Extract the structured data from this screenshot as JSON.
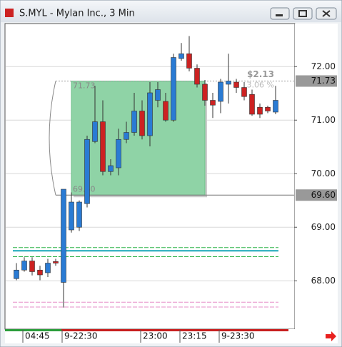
{
  "window": {
    "title": "S.MYL - Mylan Inc., 3 Min"
  },
  "chart_data": {
    "type": "candlestick",
    "categories": [
      null,
      "04:45",
      null,
      null,
      null,
      null,
      "9-22:30",
      null,
      null,
      null,
      null,
      null,
      null,
      null,
      null,
      null,
      "23:00",
      null,
      null,
      null,
      null,
      "23:15",
      null,
      null,
      null,
      null,
      "9-23:30",
      null,
      null,
      null,
      null,
      null,
      null,
      null
    ],
    "open": [
      68.04,
      68.2,
      68.37,
      68.2,
      68.15,
      68.36,
      67.97,
      68.95,
      69.0,
      69.44,
      70.6,
      70.97,
      70.04,
      70.11,
      70.64,
      70.77,
      71.17,
      70.71,
      71.37,
      71.35,
      71.0,
      72.15,
      72.24,
      71.97,
      71.67,
      71.37,
      71.35,
      71.67,
      71.71,
      71.61,
      71.48,
      71.24,
      71.24,
      71.15
    ],
    "high": [
      68.33,
      68.44,
      68.44,
      68.28,
      68.41,
      68.41,
      69.71,
      69.65,
      69.5,
      70.71,
      71.64,
      71.37,
      70.27,
      70.84,
      70.97,
      71.51,
      71.37,
      71.71,
      71.71,
      71.51,
      72.24,
      72.44,
      72.57,
      72.04,
      71.75,
      71.51,
      71.77,
      72.24,
      71.77,
      71.71,
      71.57,
      71.31,
      71.27,
      71.64
    ],
    "low": [
      68.01,
      68.17,
      68.1,
      68.01,
      68.07,
      68.28,
      67.5,
      68.9,
      68.93,
      69.37,
      70.57,
      69.97,
      69.97,
      69.97,
      70.57,
      70.71,
      70.64,
      70.51,
      71.24,
      70.97,
      70.97,
      72.11,
      71.91,
      71.61,
      71.27,
      71.04,
      71.13,
      71.31,
      71.51,
      71.37,
      71.08,
      71.04,
      71.13,
      71.11
    ],
    "close": [
      68.2,
      68.37,
      68.17,
      68.11,
      68.33,
      68.33,
      69.71,
      69.47,
      69.47,
      70.64,
      70.97,
      70.04,
      70.15,
      70.64,
      70.77,
      71.17,
      70.71,
      71.51,
      71.57,
      71.0,
      72.17,
      72.24,
      71.97,
      71.67,
      71.37,
      71.28,
      71.71,
      71.73,
      71.61,
      71.44,
      71.11,
      71.11,
      71.17,
      71.37
    ],
    "up_color": "#2a7bd4",
    "down_color": "#cc2222",
    "ylim": [
      67.11,
      72.79
    ],
    "yticks": [
      {
        "value": 68,
        "label": "68.00"
      },
      {
        "value": 69,
        "label": "69.00"
      },
      {
        "value": 70,
        "label": "70.00"
      },
      {
        "value": 71,
        "label": "71.00"
      },
      {
        "value": 72,
        "label": "72.00"
      }
    ],
    "price_markers": [
      {
        "value": 71.73,
        "label": "71.73"
      },
      {
        "value": 69.6,
        "label": "69.60"
      }
    ],
    "range_box": {
      "high": {
        "value": 71.73,
        "label": "71.73"
      },
      "low": {
        "value": 69.6,
        "label": "69.60"
      },
      "start": 7,
      "end": 24,
      "change": "$2.13",
      "percent": "3.06 %",
      "color": "#8fd3a6"
    },
    "levels": [
      {
        "value": 68.62,
        "color": "#2fb34a"
      },
      {
        "value": 68.56,
        "color": "#17a6b8"
      },
      {
        "value": 68.45,
        "color": "#2fb34a"
      },
      {
        "value": 67.6,
        "color": "#e58fc8"
      },
      {
        "value": 67.51,
        "color": "#e58fc8"
      }
    ]
  }
}
